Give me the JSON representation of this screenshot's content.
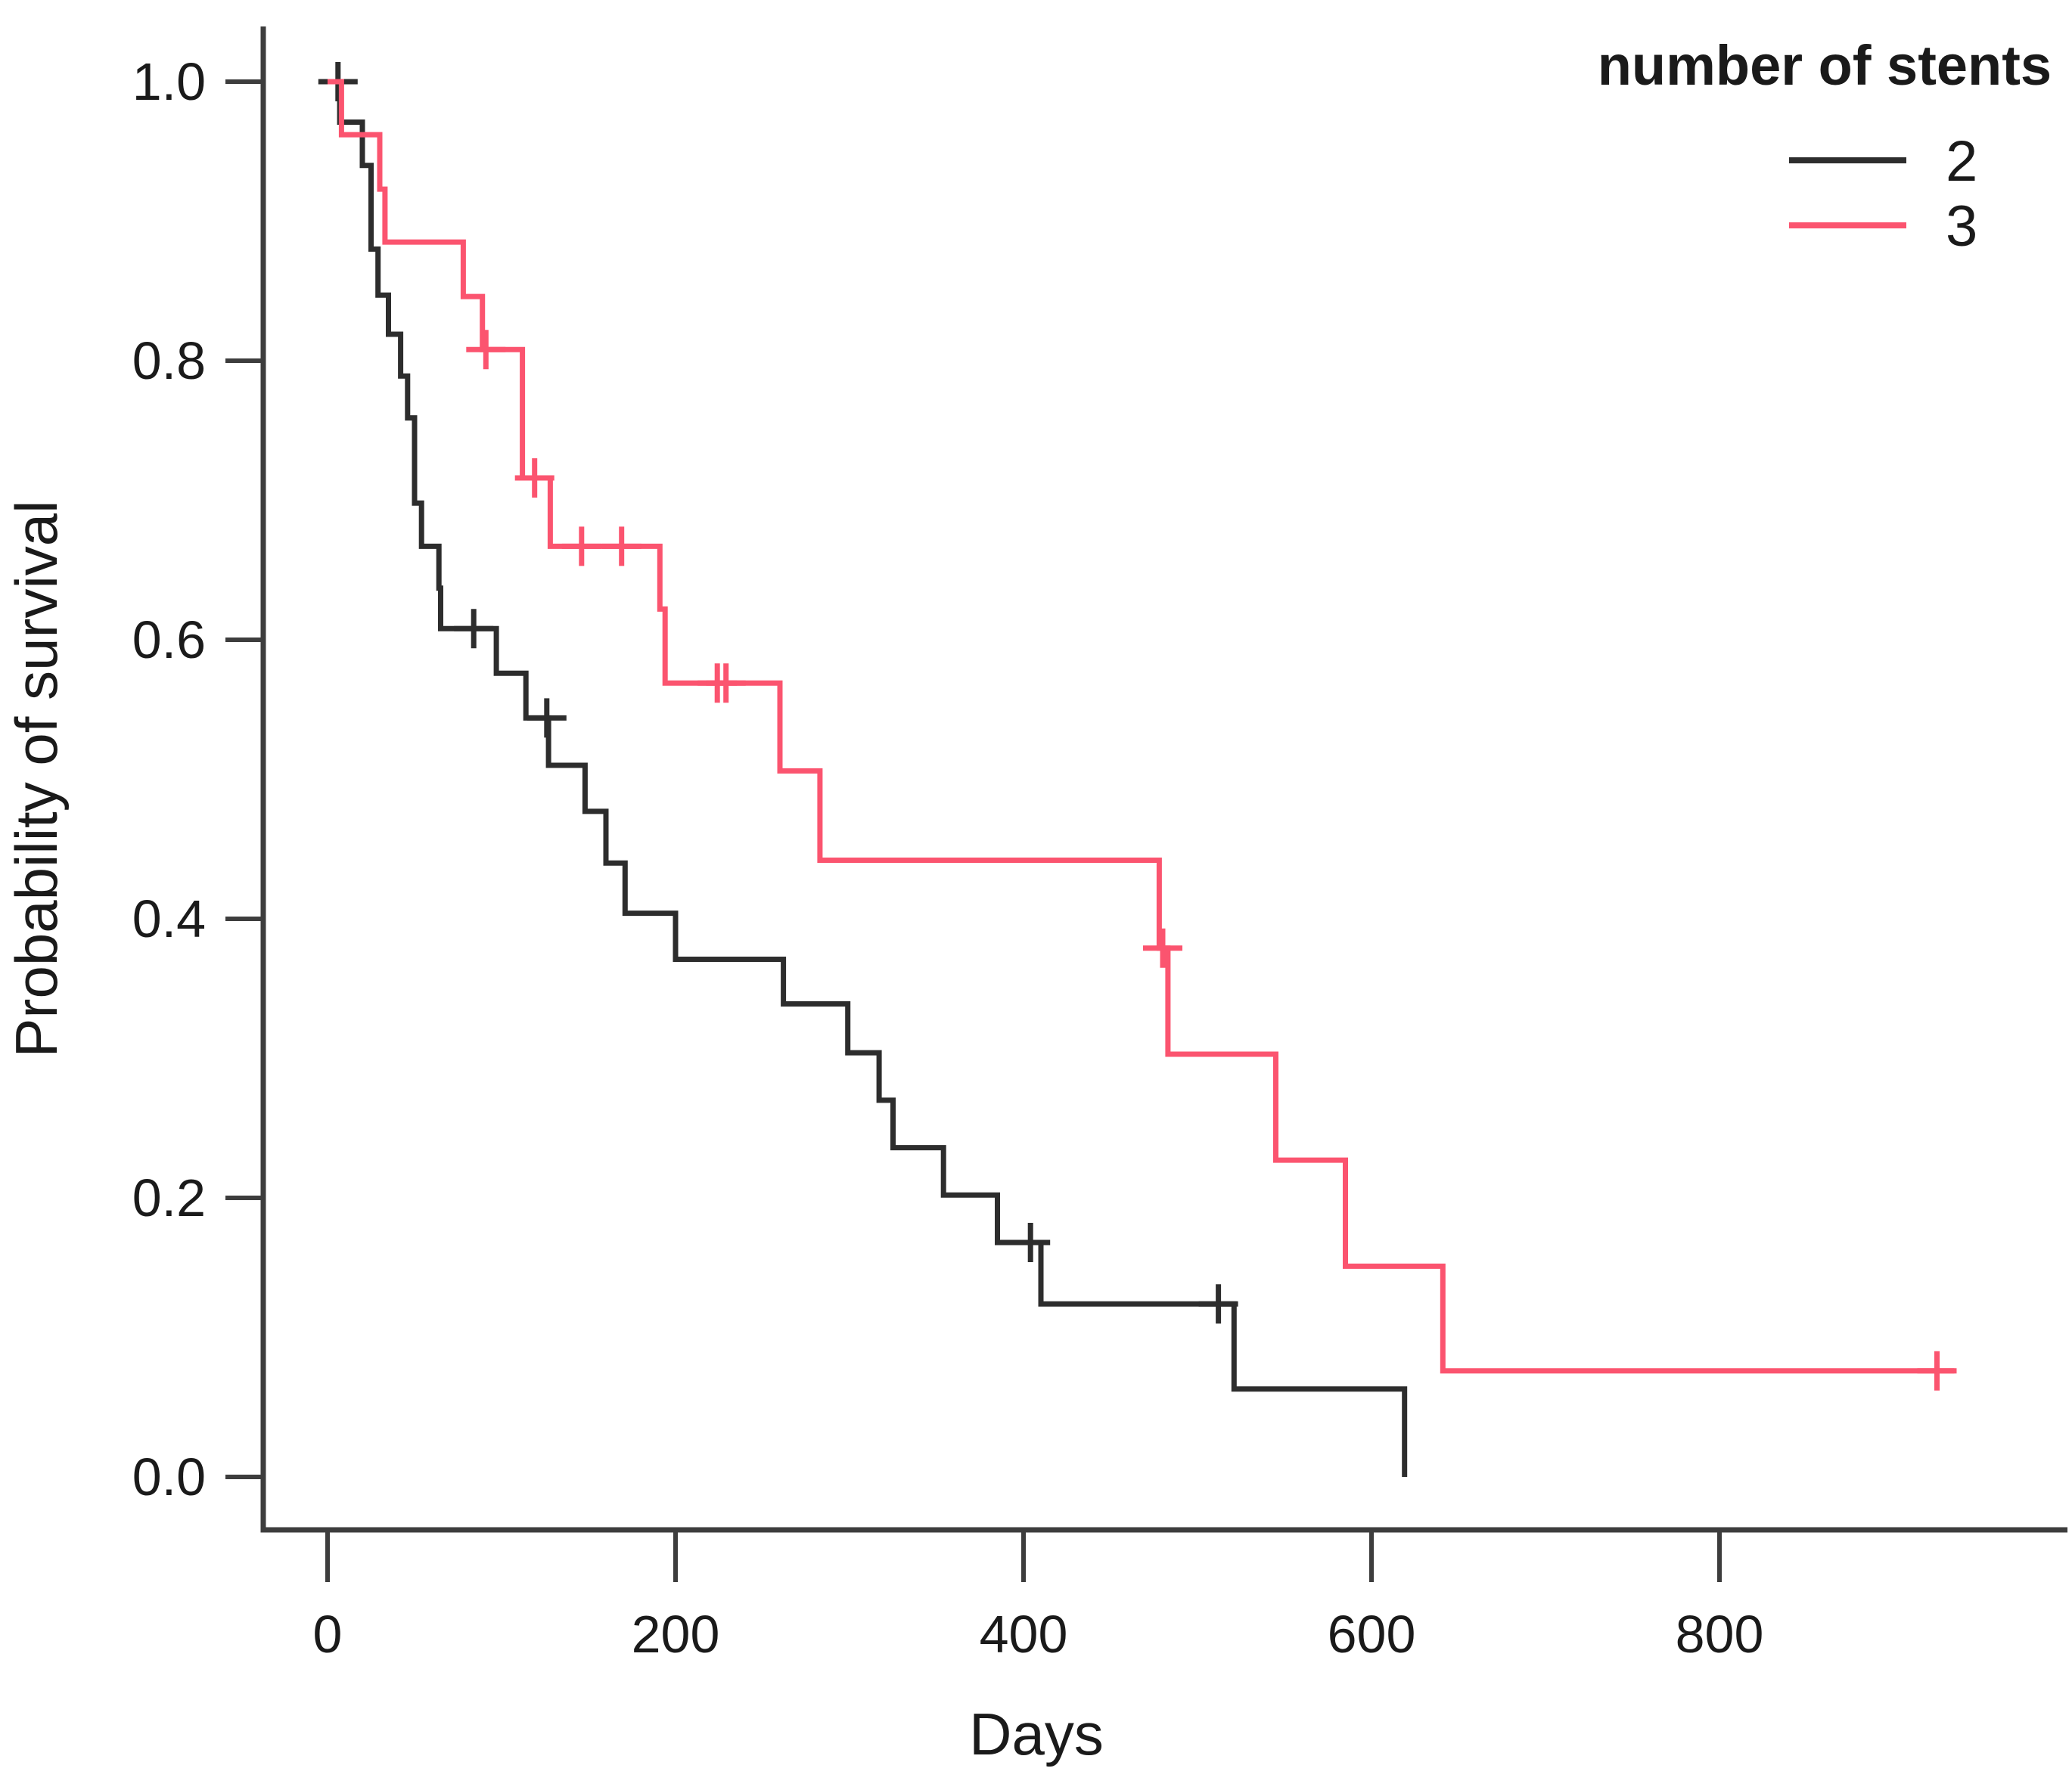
{
  "window": {
    "background": "#ffffff"
  },
  "chart_data": {
    "type": "line",
    "variant": "kaplan_meier_step_survival",
    "title": "",
    "xlabel": "Days",
    "ylabel": "Probability of survival",
    "x_ticks": [
      "0",
      "200",
      "400",
      "600",
      "800"
    ],
    "x_tick_values": [
      0,
      200,
      400,
      600,
      800
    ],
    "y_ticks": [
      "1.0",
      "0.8",
      "0.6",
      "0.4",
      "0.2",
      "0.0"
    ],
    "y_tick_values": [
      1.0,
      0.8,
      0.6,
      0.4,
      0.2,
      0.0
    ],
    "xlim_days": [
      -37,
      1000
    ],
    "ylim": [
      -0.04,
      1.05
    ],
    "grid": false,
    "colors": {
      "group_2": "#2d2d2d",
      "group_3": "#fb546f",
      "axis": "#3d3d3d",
      "text": "#1a1a1a"
    },
    "legend": {
      "title": "number of stents",
      "position": "top-right",
      "entries": [
        {
          "label": "2",
          "color": "#2d2d2d"
        },
        {
          "label": "3",
          "color": "#fb546f"
        }
      ]
    },
    "series": [
      {
        "name": "2",
        "color": "#2d2d2d",
        "steps": [
          [
            0,
            1.0
          ],
          [
            7,
            0.971
          ],
          [
            20,
            0.94
          ],
          [
            25,
            0.88
          ],
          [
            29,
            0.847
          ],
          [
            35,
            0.819
          ],
          [
            42,
            0.789
          ],
          [
            46,
            0.759
          ],
          [
            50,
            0.698
          ],
          [
            54,
            0.667
          ],
          [
            64,
            0.637
          ],
          [
            65,
            0.608
          ],
          [
            97,
            0.576
          ],
          [
            114,
            0.544
          ],
          [
            127,
            0.51
          ],
          [
            148,
            0.477
          ],
          [
            160,
            0.44
          ],
          [
            171,
            0.404
          ],
          [
            200,
            0.371
          ],
          [
            262,
            0.339
          ],
          [
            299,
            0.304
          ],
          [
            317,
            0.27
          ],
          [
            325,
            0.236
          ],
          [
            354,
            0.202
          ],
          [
            385,
            0.168
          ],
          [
            410,
            0.124
          ],
          [
            521,
            0.063
          ],
          [
            619,
            0.0
          ]
        ],
        "censors": [
          [
            6,
            1.0
          ],
          [
            84,
            0.608
          ],
          [
            126,
            0.544
          ],
          [
            404,
            0.168
          ],
          [
            512,
            0.124
          ]
        ],
        "line_end_day": 619
      },
      {
        "name": "3",
        "color": "#fb546f",
        "steps": [
          [
            0,
            1.0
          ],
          [
            8,
            0.962
          ],
          [
            30,
            0.923
          ],
          [
            33,
            0.885
          ],
          [
            78,
            0.846
          ],
          [
            89,
            0.808
          ],
          [
            112,
            0.716
          ],
          [
            128,
            0.667
          ],
          [
            191,
            0.622
          ],
          [
            194,
            0.569
          ],
          [
            260,
            0.506
          ],
          [
            283,
            0.442
          ],
          [
            478,
            0.379
          ],
          [
            483,
            0.303
          ],
          [
            545,
            0.227
          ],
          [
            585,
            0.151
          ],
          [
            641,
            0.076
          ]
        ],
        "censors": [
          [
            91,
            0.808
          ],
          [
            119,
            0.716
          ],
          [
            146,
            0.667
          ],
          [
            169,
            0.667
          ],
          [
            224,
            0.569
          ],
          [
            229,
            0.569
          ],
          [
            480,
            0.379
          ],
          [
            925,
            0.076
          ]
        ],
        "line_end_day": 935
      }
    ]
  }
}
